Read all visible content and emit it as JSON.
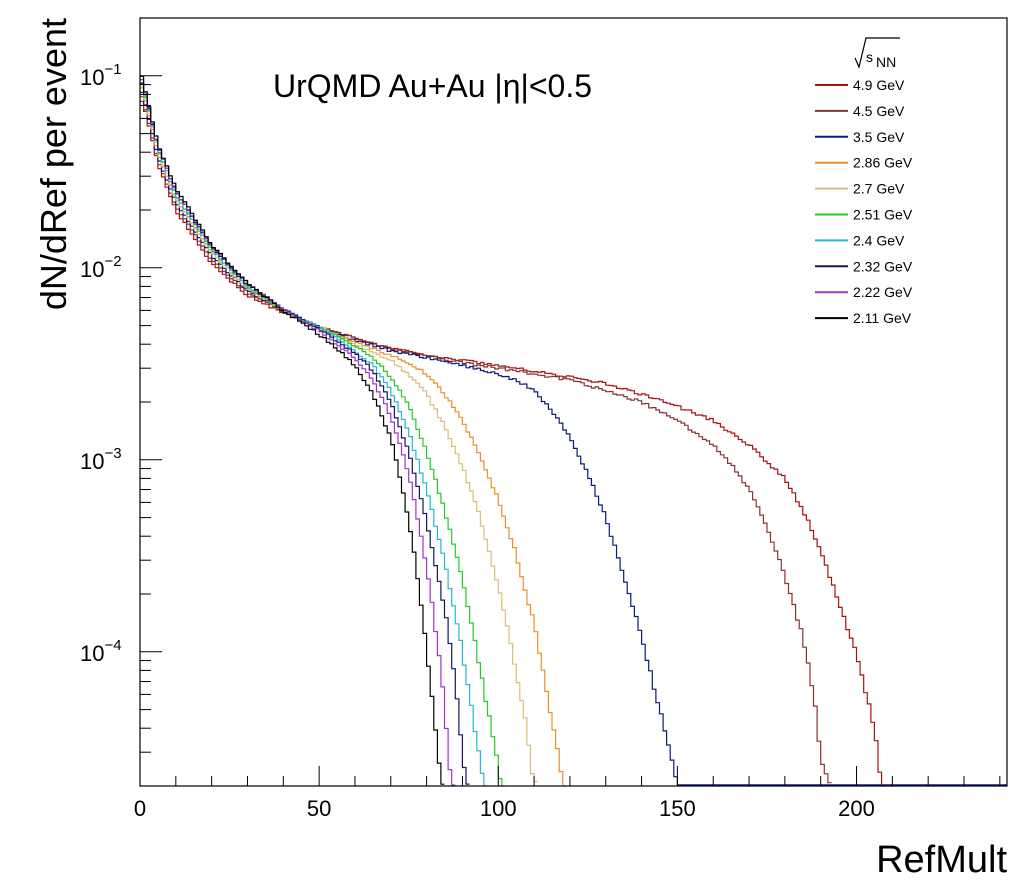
{
  "chart_data": {
    "type": "line",
    "title": "UrQMD Au+Au |η|<0.5",
    "xlabel": "RefMult",
    "ylabel": "dN/dRef per event",
    "xlim": [
      0,
      242
    ],
    "ylim": [
      2e-05,
      0.2
    ],
    "yscale": "log",
    "grid": false,
    "legend_title": "√s_NN",
    "legend_position": "top-right",
    "x_ticks": [
      "0",
      "50",
      "100",
      "150",
      "200"
    ],
    "y_ticks": [
      {
        "value": 0.1,
        "mantissa": "10",
        "exponent": "−1"
      },
      {
        "value": 0.01,
        "mantissa": "10",
        "exponent": "−2"
      },
      {
        "value": 0.001,
        "mantissa": "10",
        "exponent": "−3"
      },
      {
        "value": 0.0001,
        "mantissa": "10",
        "exponent": "−4"
      }
    ],
    "series": [
      {
        "name": "4.9 GeV",
        "color": "#aa1111",
        "x": [
          0,
          2,
          5,
          10,
          20,
          30,
          40,
          50,
          60,
          70,
          80,
          90,
          100,
          110,
          120,
          130,
          140,
          150,
          160,
          170,
          180,
          185,
          190,
          195,
          200,
          205,
          207
        ],
        "y": [
          0.08,
          0.06,
          0.035,
          0.02,
          0.0105,
          0.0072,
          0.0058,
          0.0049,
          0.0043,
          0.0038,
          0.0035,
          0.0033,
          0.0031,
          0.0029,
          0.0027,
          0.0025,
          0.0022,
          0.0019,
          0.0016,
          0.0012,
          0.0008,
          0.00055,
          0.00034,
          0.00018,
          0.0001,
          4e-05,
          2e-05
        ]
      },
      {
        "name": "4.5 GeV",
        "color": "#883333",
        "x": [
          0,
          2,
          5,
          10,
          20,
          30,
          40,
          50,
          60,
          70,
          80,
          90,
          100,
          110,
          120,
          130,
          140,
          150,
          160,
          165,
          170,
          175,
          180,
          185,
          188,
          190,
          192
        ],
        "y": [
          0.085,
          0.062,
          0.036,
          0.021,
          0.011,
          0.0074,
          0.0059,
          0.0049,
          0.0043,
          0.0038,
          0.0035,
          0.0032,
          0.003,
          0.0028,
          0.0026,
          0.0023,
          0.002,
          0.0016,
          0.0012,
          0.00095,
          0.0007,
          0.00045,
          0.00025,
          0.00012,
          6e-05,
          3e-05,
          2e-05
        ]
      },
      {
        "name": "3.5 GeV",
        "color": "#0a1a7a",
        "x": [
          0,
          2,
          5,
          10,
          20,
          30,
          40,
          50,
          60,
          70,
          80,
          90,
          100,
          105,
          110,
          115,
          120,
          125,
          130,
          135,
          140,
          145,
          148,
          150
        ],
        "y": [
          0.09,
          0.065,
          0.038,
          0.022,
          0.0115,
          0.0076,
          0.006,
          0.0049,
          0.0042,
          0.0037,
          0.0034,
          0.0031,
          0.0028,
          0.0026,
          0.0023,
          0.0018,
          0.0013,
          0.00085,
          0.0005,
          0.00025,
          0.00012,
          5e-05,
          3e-05,
          2e-05
        ]
      },
      {
        "name": "2.86 GeV",
        "color": "#e8912c",
        "x": [
          0,
          2,
          5,
          10,
          20,
          30,
          40,
          50,
          60,
          70,
          75,
          80,
          85,
          90,
          95,
          100,
          105,
          110,
          113,
          116,
          118
        ],
        "y": [
          0.095,
          0.068,
          0.04,
          0.023,
          0.012,
          0.0078,
          0.006,
          0.0049,
          0.0041,
          0.0035,
          0.0032,
          0.0028,
          0.0022,
          0.0016,
          0.00105,
          0.00062,
          0.00032,
          0.00014,
          7e-05,
          3.5e-05,
          2e-05
        ]
      },
      {
        "name": "2.7 GeV",
        "color": "#d8c07a",
        "x": [
          0,
          2,
          5,
          10,
          20,
          30,
          40,
          50,
          60,
          70,
          75,
          80,
          85,
          90,
          95,
          100,
          105,
          108,
          110
        ],
        "y": [
          0.095,
          0.07,
          0.041,
          0.023,
          0.012,
          0.0079,
          0.006,
          0.0049,
          0.004,
          0.0033,
          0.0028,
          0.0022,
          0.0015,
          0.00092,
          0.0005,
          0.00022,
          8e-05,
          4e-05,
          2e-05
        ]
      },
      {
        "name": "2.51 GeV",
        "color": "#22cc22",
        "x": [
          0,
          2,
          5,
          10,
          20,
          30,
          40,
          50,
          60,
          65,
          70,
          75,
          80,
          85,
          90,
          95,
          98,
          101
        ],
        "y": [
          0.1,
          0.072,
          0.042,
          0.024,
          0.0125,
          0.008,
          0.006,
          0.0049,
          0.0039,
          0.0034,
          0.0027,
          0.0019,
          0.0011,
          0.00055,
          0.00024,
          8e-05,
          4e-05,
          2e-05
        ]
      },
      {
        "name": "2.4 GeV",
        "color": "#22b8d6",
        "x": [
          0,
          2,
          5,
          10,
          20,
          30,
          40,
          50,
          60,
          65,
          70,
          75,
          80,
          85,
          90,
          93,
          96
        ],
        "y": [
          0.1,
          0.073,
          0.042,
          0.024,
          0.0125,
          0.0081,
          0.0061,
          0.0049,
          0.0037,
          0.0031,
          0.0023,
          0.0014,
          0.0007,
          0.0003,
          0.0001,
          4.5e-05,
          2e-05
        ]
      },
      {
        "name": "2.32 GeV",
        "color": "#151566",
        "x": [
          0,
          2,
          5,
          10,
          20,
          30,
          40,
          50,
          60,
          65,
          70,
          75,
          80,
          85,
          88,
          91
        ],
        "y": [
          0.1,
          0.074,
          0.043,
          0.025,
          0.0128,
          0.0082,
          0.0061,
          0.0048,
          0.0036,
          0.0029,
          0.002,
          0.0011,
          0.00048,
          0.00017,
          7e-05,
          2e-05
        ]
      },
      {
        "name": "2.22 GeV",
        "color": "#a030d0",
        "x": [
          0,
          2,
          5,
          10,
          20,
          30,
          40,
          50,
          60,
          65,
          70,
          75,
          78,
          81,
          84,
          87
        ],
        "y": [
          0.105,
          0.075,
          0.043,
          0.025,
          0.013,
          0.0083,
          0.0061,
          0.0047,
          0.0034,
          0.0026,
          0.0017,
          0.00085,
          0.00045,
          0.00021,
          8e-05,
          2e-05
        ]
      },
      {
        "name": "2.11 GeV",
        "color": "#000000",
        "x": [
          0,
          2,
          5,
          10,
          20,
          30,
          40,
          50,
          55,
          60,
          65,
          70,
          73,
          76,
          79,
          82,
          84
        ],
        "y": [
          0.11,
          0.076,
          0.044,
          0.026,
          0.0132,
          0.0083,
          0.006,
          0.0045,
          0.0038,
          0.0031,
          0.0022,
          0.0013,
          0.00075,
          0.00038,
          0.00015,
          5e-05,
          2e-05
        ]
      }
    ]
  }
}
